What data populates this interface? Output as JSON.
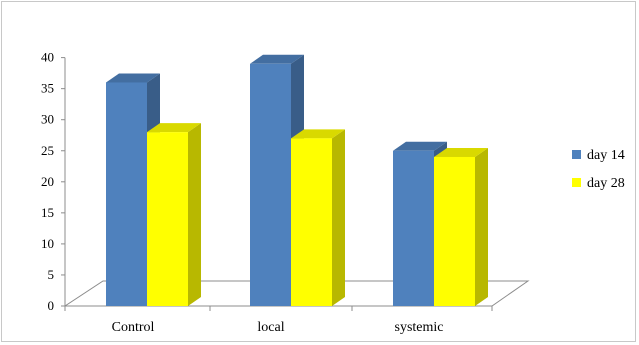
{
  "chart_data": {
    "type": "bar",
    "categories": [
      "Control",
      "local",
      "systemic"
    ],
    "series": [
      {
        "name": "day 14",
        "values": [
          36,
          39,
          25
        ],
        "color": "#4f81bd"
      },
      {
        "name": "day 28",
        "values": [
          28,
          27,
          24
        ],
        "color": "#ffff00"
      }
    ],
    "y_ticks": [
      "0",
      "5",
      "10",
      "15",
      "20",
      "25",
      "30",
      "35",
      "40"
    ],
    "ylim": [
      0,
      40
    ],
    "grid": false,
    "legend_position": "right",
    "style": "3d-column"
  }
}
